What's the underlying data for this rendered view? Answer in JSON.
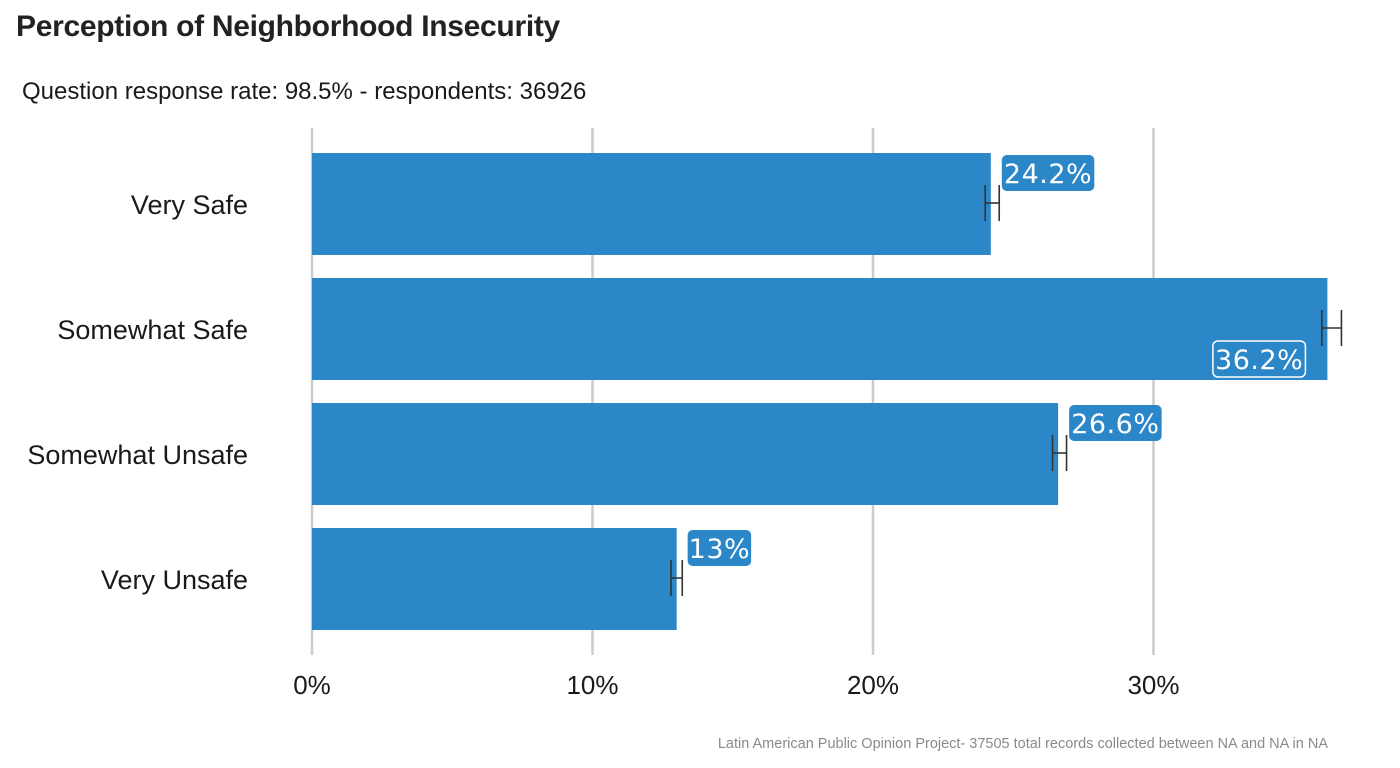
{
  "header": {
    "title": "Perception of Neighborhood Insecurity",
    "subtitle": "Question response rate: 98.5%  - respondents: 36926"
  },
  "footer": {
    "caption": "Latin American Public Opinion Project- 37505 total records collected between NA and NA in  NA"
  },
  "colors": {
    "bar": "#2b87c8",
    "grid": "#cccccc",
    "errorbar": "#333333",
    "label_bg": "#2b87c8",
    "label_text": "#ffffff"
  },
  "chart_data": {
    "type": "bar",
    "orientation": "horizontal",
    "title": "Perception of Neighborhood Insecurity",
    "subtitle": "Question response rate: 98.5%  - respondents: 36926",
    "categories": [
      "Very Safe",
      "Somewhat Safe",
      "Somewhat Unsafe",
      "Very Unsafe"
    ],
    "values": [
      24.2,
      36.2,
      26.6,
      13.0
    ],
    "value_labels": [
      "24.2%",
      "36.2%",
      "26.6%",
      "13%"
    ],
    "error_bars": [
      {
        "low": 24.0,
        "high": 24.5
      },
      {
        "low": 36.0,
        "high": 36.7
      },
      {
        "low": 26.4,
        "high": 26.9
      },
      {
        "low": 12.8,
        "high": 13.2
      }
    ],
    "xlim": [
      0,
      37
    ],
    "xticks": [
      0,
      10,
      20,
      30
    ],
    "xtick_labels": [
      "0%",
      "10%",
      "20%",
      "30%"
    ],
    "xlabel": "",
    "ylabel": "",
    "grid": "vertical major",
    "legend": "none"
  }
}
